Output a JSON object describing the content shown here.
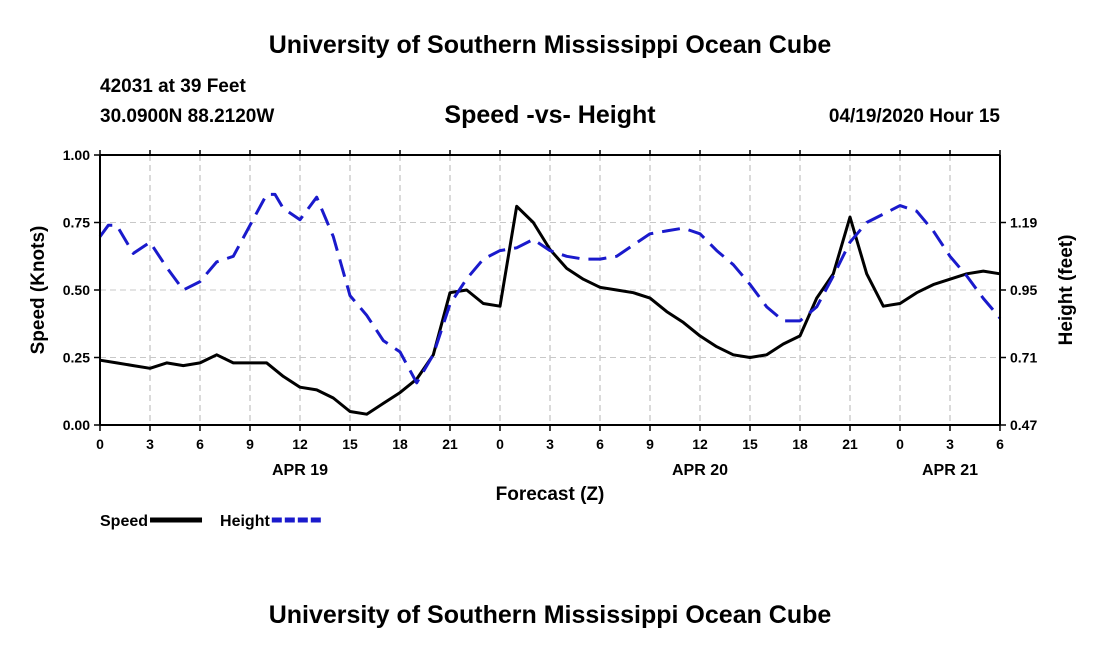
{
  "header": {
    "top_title": "University of Southern Mississippi Ocean Cube",
    "station": "42031 at 39 Feet",
    "coordinates": "30.0900N 88.2120W",
    "chart_title": "Speed -vs- Height",
    "datetime": "04/19/2020 Hour 15",
    "bottom_title": "University of Southern Mississippi Ocean Cube"
  },
  "chart_data": {
    "type": "line",
    "title": "Speed -vs- Height",
    "xlabel": "Forecast (Z)",
    "ylabel": "Speed (Knots)",
    "ylabel_right": "Height (feet)",
    "grid": true,
    "x_unit": "hours since APR 19 00Z",
    "xlim": [
      0,
      54
    ],
    "ylim": [
      0,
      1.0
    ],
    "ylim_right": [
      0.47,
      1.43
    ],
    "x_ticks": [
      {
        "x": 0,
        "label": "0"
      },
      {
        "x": 3,
        "label": "3"
      },
      {
        "x": 6,
        "label": "6"
      },
      {
        "x": 9,
        "label": "9"
      },
      {
        "x": 12,
        "label": "12"
      },
      {
        "x": 15,
        "label": "15"
      },
      {
        "x": 18,
        "label": "18"
      },
      {
        "x": 21,
        "label": "21"
      },
      {
        "x": 24,
        "label": "0"
      },
      {
        "x": 27,
        "label": "3"
      },
      {
        "x": 30,
        "label": "6"
      },
      {
        "x": 33,
        "label": "9"
      },
      {
        "x": 36,
        "label": "12"
      },
      {
        "x": 39,
        "label": "15"
      },
      {
        "x": 42,
        "label": "18"
      },
      {
        "x": 45,
        "label": "21"
      },
      {
        "x": 48,
        "label": "0"
      },
      {
        "x": 51,
        "label": "3"
      },
      {
        "x": 54,
        "label": "6"
      }
    ],
    "date_labels": [
      {
        "x": 12,
        "label": "APR 19"
      },
      {
        "x": 36,
        "label": "APR 20"
      },
      {
        "x": 51,
        "label": "APR 21"
      }
    ],
    "y_ticks": [
      {
        "y": 0.0,
        "label": "0.00"
      },
      {
        "y": 0.25,
        "label": "0.25"
      },
      {
        "y": 0.5,
        "label": "0.50"
      },
      {
        "y": 0.75,
        "label": "0.75"
      },
      {
        "y": 1.0,
        "label": "1.00"
      }
    ],
    "y_ticks_right": [
      {
        "y": 0.47,
        "label": "0.47"
      },
      {
        "y": 0.71,
        "label": "0.71"
      },
      {
        "y": 0.95,
        "label": "0.95"
      },
      {
        "y": 1.19,
        "label": "1.19"
      }
    ],
    "legend": {
      "position": "bottom-left",
      "entries": [
        {
          "name": "Speed",
          "color": "#000000",
          "style": "solid"
        },
        {
          "name": "Height",
          "color": "#1a1acc",
          "style": "dashed"
        }
      ]
    },
    "series": [
      {
        "name": "Speed",
        "axis": "left",
        "color": "#000000",
        "style": "solid",
        "x": [
          0,
          1,
          2,
          3,
          4,
          5,
          6,
          7,
          8,
          9,
          10,
          11,
          12,
          13,
          14,
          15,
          16,
          17,
          18,
          19,
          20,
          21,
          22,
          23,
          24,
          25,
          26,
          27,
          28,
          29,
          30,
          31,
          32,
          33,
          34,
          35,
          36,
          37,
          38,
          39,
          40,
          41,
          42,
          43,
          44,
          45,
          46,
          47,
          48,
          49,
          50,
          51,
          52,
          53,
          54
        ],
        "values": [
          0.24,
          0.23,
          0.22,
          0.21,
          0.23,
          0.22,
          0.23,
          0.26,
          0.23,
          0.23,
          0.23,
          0.18,
          0.14,
          0.13,
          0.1,
          0.05,
          0.04,
          0.08,
          0.12,
          0.17,
          0.26,
          0.49,
          0.5,
          0.45,
          0.44,
          0.81,
          0.75,
          0.65,
          0.58,
          0.54,
          0.51,
          0.5,
          0.49,
          0.47,
          0.42,
          0.38,
          0.33,
          0.29,
          0.26,
          0.25,
          0.26,
          0.3,
          0.33,
          0.47,
          0.56,
          0.77,
          0.56,
          0.44,
          0.45,
          0.49,
          0.52,
          0.54,
          0.56,
          0.57,
          0.56
        ]
      },
      {
        "name": "Height",
        "axis": "right",
        "color": "#1a1acc",
        "style": "dashed",
        "x": [
          0,
          0.5,
          1,
          2,
          3,
          4,
          5,
          6,
          7,
          8,
          9,
          10,
          10.5,
          11,
          12,
          13,
          14,
          15,
          16,
          17,
          18,
          19,
          20,
          21,
          22,
          23,
          24,
          25,
          26,
          27,
          28,
          29,
          30,
          31,
          32,
          33,
          34,
          35,
          36,
          37,
          38,
          39,
          40,
          41,
          42,
          43,
          44,
          45,
          46,
          47,
          48,
          49,
          50,
          51,
          52,
          53,
          54
        ],
        "values": [
          1.14,
          1.18,
          1.18,
          1.08,
          1.12,
          1.03,
          0.95,
          0.98,
          1.05,
          1.07,
          1.18,
          1.29,
          1.29,
          1.24,
          1.2,
          1.28,
          1.14,
          0.93,
          0.86,
          0.77,
          0.73,
          0.62,
          0.72,
          0.9,
          0.99,
          1.06,
          1.09,
          1.1,
          1.13,
          1.09,
          1.07,
          1.06,
          1.06,
          1.07,
          1.11,
          1.15,
          1.16,
          1.17,
          1.15,
          1.09,
          1.04,
          0.97,
          0.89,
          0.84,
          0.84,
          0.89,
          1.0,
          1.12,
          1.19,
          1.22,
          1.25,
          1.23,
          1.16,
          1.07,
          1.0,
          0.92,
          0.85
        ]
      }
    ]
  }
}
